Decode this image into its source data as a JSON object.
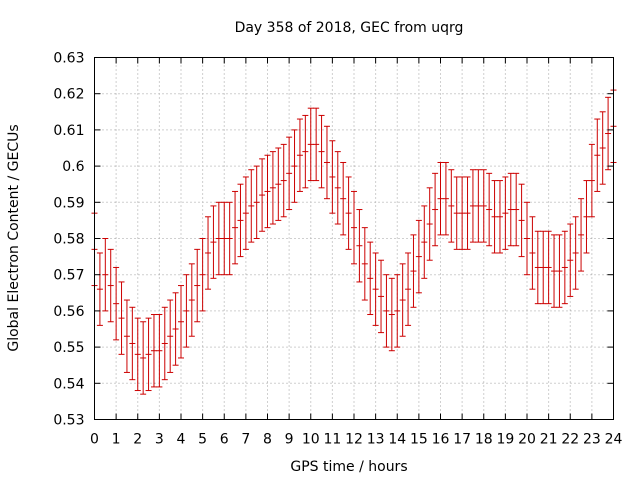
{
  "chart_data": {
    "type": "scatter",
    "title": "Day 358 of 2018, GEC from uqrg",
    "xlabel": "GPS time / hours",
    "ylabel": "Global Electron Content / GECUs",
    "xlim": [
      0,
      24
    ],
    "ylim": [
      0.53,
      0.63
    ],
    "xticks": [
      "0",
      "1",
      "2",
      "3",
      "4",
      "5",
      "6",
      "7",
      "8",
      "9",
      "10",
      "11",
      "12",
      "13",
      "14",
      "15",
      "16",
      "17",
      "18",
      "19",
      "20",
      "21",
      "22",
      "23",
      "24"
    ],
    "yticks": [
      "0.53",
      "0.54",
      "0.55",
      "0.56",
      "0.57",
      "0.58",
      "0.59",
      "0.6",
      "0.61",
      "0.62",
      "0.63"
    ],
    "grid": true,
    "error_bar_halfwidth": 0.01,
    "series": [
      {
        "color": "#cc0000",
        "x": [
          0,
          0.25,
          0.5,
          0.75,
          1,
          1.25,
          1.5,
          1.75,
          2,
          2.25,
          2.5,
          2.75,
          3,
          3.25,
          3.5,
          3.75,
          4,
          4.25,
          4.5,
          4.75,
          5,
          5.25,
          5.5,
          5.75,
          6,
          6.25,
          6.5,
          6.75,
          7,
          7.25,
          7.5,
          7.75,
          8,
          8.25,
          8.5,
          8.75,
          9,
          9.25,
          9.5,
          9.75,
          10,
          10.25,
          10.5,
          10.75,
          11,
          11.25,
          11.5,
          11.75,
          12,
          12.25,
          12.5,
          12.75,
          13,
          13.25,
          13.5,
          13.75,
          14,
          14.25,
          14.5,
          14.75,
          15,
          15.25,
          15.5,
          15.75,
          16,
          16.25,
          16.5,
          16.75,
          17,
          17.25,
          17.5,
          17.75,
          18,
          18.25,
          18.5,
          18.75,
          19,
          19.25,
          19.5,
          19.75,
          20,
          20.25,
          20.5,
          20.75,
          21,
          21.25,
          21.5,
          21.75,
          22,
          22.25,
          22.5,
          22.75,
          23,
          23.25,
          23.5,
          23.75,
          24
        ],
        "y": [
          0.577,
          0.566,
          0.57,
          0.567,
          0.562,
          0.558,
          0.553,
          0.551,
          0.548,
          0.547,
          0.548,
          0.549,
          0.549,
          0.551,
          0.553,
          0.555,
          0.557,
          0.56,
          0.563,
          0.567,
          0.57,
          0.576,
          0.579,
          0.58,
          0.58,
          0.58,
          0.583,
          0.585,
          0.587,
          0.589,
          0.59,
          0.592,
          0.593,
          0.594,
          0.595,
          0.596,
          0.598,
          0.6,
          0.603,
          0.604,
          0.606,
          0.606,
          0.604,
          0.601,
          0.597,
          0.594,
          0.591,
          0.587,
          0.583,
          0.578,
          0.573,
          0.569,
          0.566,
          0.564,
          0.56,
          0.559,
          0.56,
          0.563,
          0.566,
          0.571,
          0.575,
          0.579,
          0.584,
          0.588,
          0.591,
          0.591,
          0.589,
          0.587,
          0.587,
          0.587,
          0.589,
          0.589,
          0.589,
          0.588,
          0.586,
          0.586,
          0.587,
          0.588,
          0.588,
          0.585,
          0.58,
          0.576,
          0.572,
          0.572,
          0.572,
          0.571,
          0.571,
          0.572,
          0.574,
          0.576,
          0.581,
          0.586,
          0.596,
          0.603,
          0.605,
          0.609,
          0.611
        ]
      }
    ]
  }
}
